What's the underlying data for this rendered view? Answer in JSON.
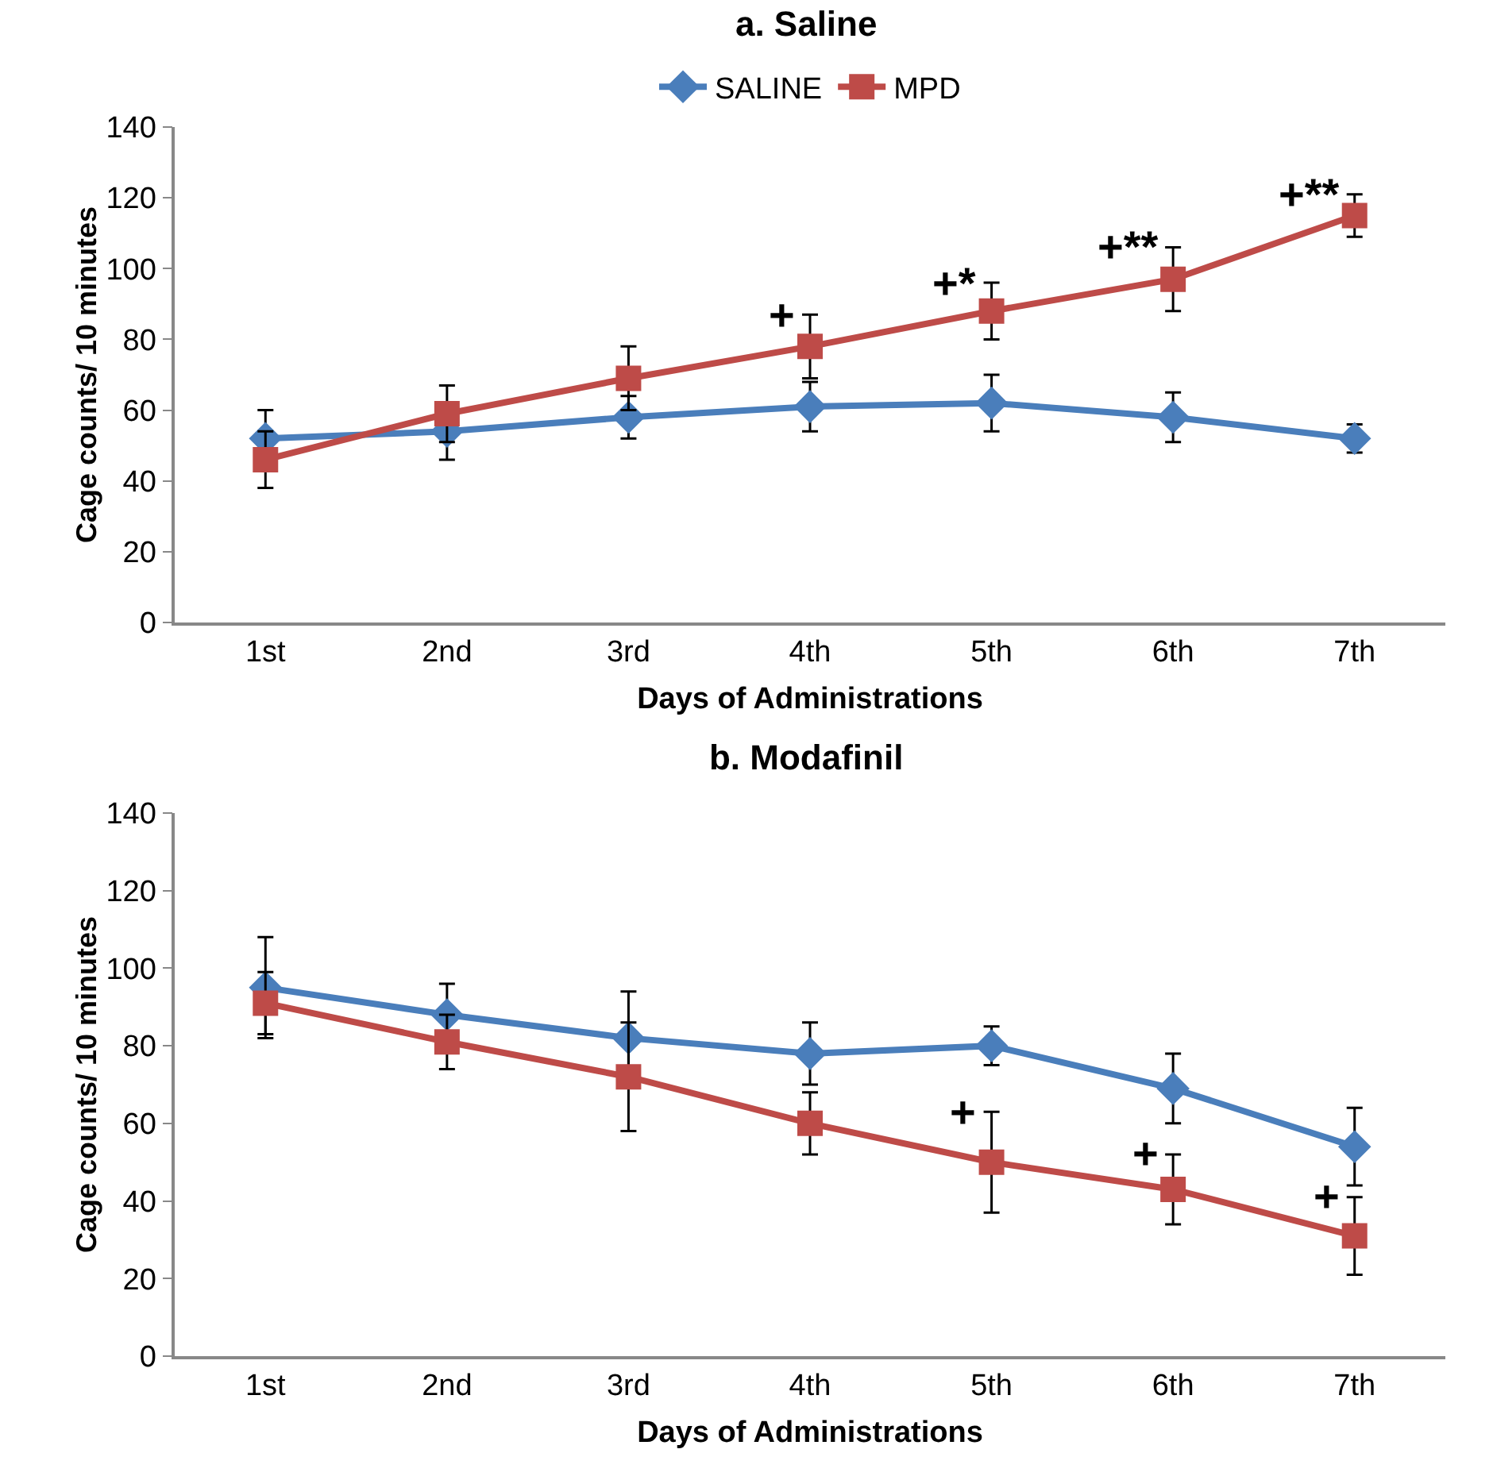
{
  "chart_data": [
    {
      "type": "line",
      "title": "a. Saline",
      "xlabel": "Days of Administrations",
      "ylabel": "Cage counts/ 10 minutes",
      "categories": [
        "1st",
        "2nd",
        "3rd",
        "4th",
        "5th",
        "6th",
        "7th"
      ],
      "ylim": [
        0,
        140
      ],
      "yticks": [
        0,
        20,
        40,
        60,
        80,
        100,
        120,
        140
      ],
      "grid": false,
      "legend": "top",
      "series": [
        {
          "name": "SALINE",
          "color": "#4a7ebb",
          "marker": "diamond",
          "values": [
            52,
            54,
            58,
            61,
            62,
            58,
            52
          ],
          "errors": [
            8,
            8,
            6,
            7,
            8,
            7,
            4
          ]
        },
        {
          "name": "MPD",
          "color": "#be4b48",
          "marker": "square",
          "values": [
            46,
            59,
            69,
            78,
            88,
            97,
            115
          ],
          "errors": [
            8,
            8,
            9,
            9,
            8,
            9,
            6
          ]
        }
      ],
      "annotations": [
        {
          "text": "+",
          "x": "4th",
          "y": 87
        },
        {
          "text": "+*",
          "x": "5th",
          "y": 96
        },
        {
          "text": "+**",
          "x": "6th",
          "y": 106
        },
        {
          "text": "+**",
          "x": "7th",
          "y": 121
        }
      ]
    },
    {
      "type": "line",
      "title": "b. Modafinil",
      "xlabel": "Days of Administrations",
      "ylabel": "Cage counts/ 10 minutes",
      "categories": [
        "1st",
        "2nd",
        "3rd",
        "4th",
        "5th",
        "6th",
        "7th"
      ],
      "ylim": [
        0,
        140
      ],
      "yticks": [
        0,
        20,
        40,
        60,
        80,
        100,
        120,
        140
      ],
      "grid": false,
      "legend": false,
      "series": [
        {
          "color": "#4a7ebb",
          "marker": "diamond",
          "values": [
            95,
            88,
            82,
            78,
            80,
            69,
            54
          ],
          "errors": [
            13,
            8,
            12,
            8,
            5,
            9,
            10
          ]
        },
        {
          "color": "#be4b48",
          "marker": "square",
          "values": [
            91,
            81,
            72,
            60,
            50,
            43,
            31
          ],
          "errors": [
            8,
            7,
            14,
            8,
            13,
            9,
            10
          ]
        }
      ],
      "annotations": [
        {
          "text": "+",
          "x": "5th",
          "y": 63
        },
        {
          "text": "+",
          "x": "6th",
          "y": 52
        },
        {
          "text": "+",
          "x": "7th",
          "y": 41
        }
      ]
    }
  ]
}
